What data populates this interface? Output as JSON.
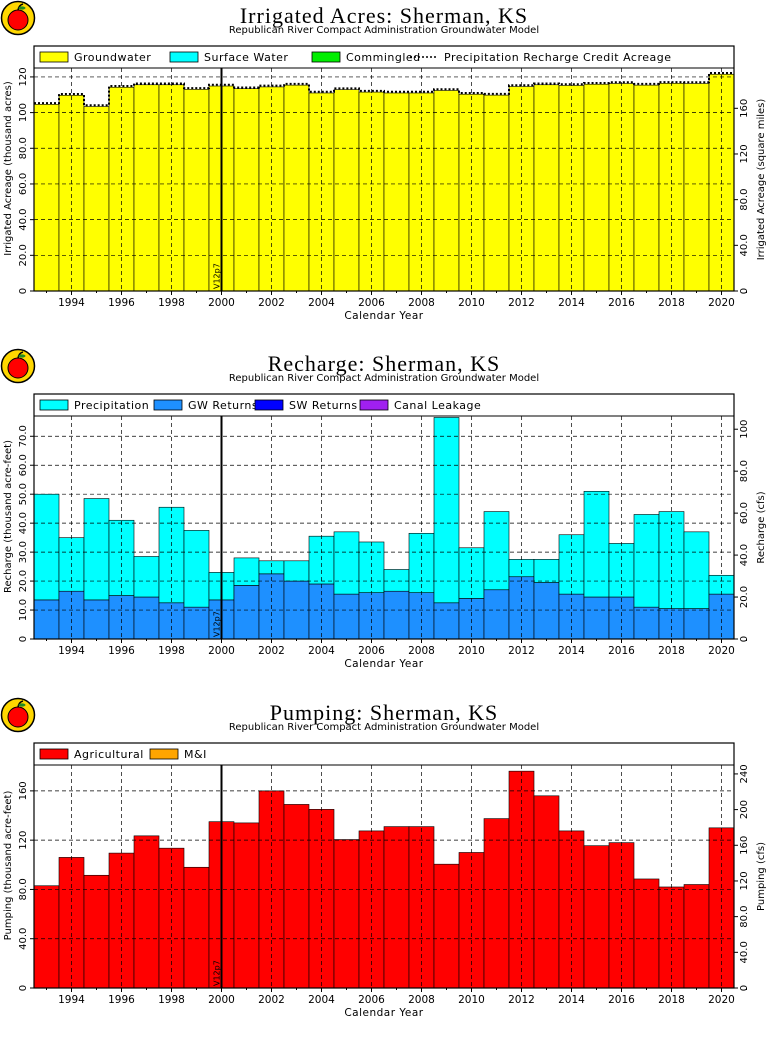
{
  "colors": {
    "groundwater": "#ffff00",
    "surface_water": "#00ffff",
    "commingled": "#00ee00",
    "precipitation": "#00ffff",
    "gw_returns": "#1e90ff",
    "sw_returns": "#0000ff",
    "canal_leakage": "#a020f0",
    "agricultural": "#ff0000",
    "mi": "#ffa500",
    "logo_apple": "#ff0000",
    "logo_ring": "#ffd700"
  },
  "chart_data": [
    {
      "type": "bar",
      "title": "Irrigated Acres:  Sherman,  KS",
      "subtitle": "Republican River Compact Administration Groundwater Model",
      "xlabel": "Calendar Year",
      "ylabel": "Irrigated Acreage (thousand acres)",
      "ylabel_right": "Irrigated Acreage (square miles)",
      "xlim": [
        1993,
        2021
      ],
      "ylim": [
        0,
        125
      ],
      "ylim_right": [
        0,
        195.3
      ],
      "yticks": [
        "0",
        "20.0",
        "40.0",
        "60.0",
        "80.0",
        "100",
        "120"
      ],
      "yticks_right": [
        "0",
        "40.0",
        "80.0",
        "120",
        "160"
      ],
      "xticks": [
        "1994",
        "1996",
        "1998",
        "2000",
        "2002",
        "2004",
        "2006",
        "2008",
        "2010",
        "2012",
        "2014",
        "2016",
        "2018",
        "2020"
      ],
      "marker_year": 2000.5,
      "marker_label": "V12p7",
      "grid": true,
      "legend": [
        "Groundwater",
        "Surface Water",
        "Commingled",
        "Precipitation Recharge Credit Acreage"
      ],
      "years": [
        1993,
        1994,
        1995,
        1996,
        1997,
        1998,
        1999,
        2000,
        2001,
        2002,
        2003,
        2004,
        2005,
        2006,
        2007,
        2008,
        2009,
        2010,
        2011,
        2012,
        2013,
        2014,
        2015,
        2016,
        2017,
        2018,
        2019,
        2020
      ],
      "series": [
        {
          "name": "Groundwater",
          "values": [
            104.6,
            109.7,
            103.4,
            114.2,
            115.6,
            115.6,
            113.0,
            114.9,
            113.4,
            114.4,
            115.4,
            111.0,
            112.9,
            111.5,
            111.0,
            111.0,
            112.4,
            110.3,
            109.8,
            114.6,
            115.6,
            115.2,
            115.9,
            116.3,
            115.4,
            116.4,
            116.3,
            121.5
          ]
        },
        {
          "name": "Surface Water",
          "values": [
            0,
            0,
            0,
            0,
            0,
            0,
            0,
            0,
            0,
            0,
            0,
            0,
            0,
            0,
            0,
            0,
            0,
            0,
            0,
            0,
            0,
            0,
            0,
            0,
            0,
            0,
            0,
            0
          ]
        },
        {
          "name": "Commingled",
          "values": [
            0,
            0,
            0,
            0,
            0,
            0,
            0,
            0,
            0,
            0,
            0,
            0,
            0,
            0,
            0,
            0,
            0,
            0,
            0,
            0,
            0,
            0,
            0,
            0,
            0,
            0,
            0,
            0
          ]
        },
        {
          "name": "Precipitation Recharge Credit Acreage",
          "values": [
            105.3,
            110.4,
            104.1,
            114.9,
            116.3,
            116.3,
            113.7,
            115.6,
            114.1,
            115.1,
            116.1,
            111.7,
            113.6,
            112.2,
            111.7,
            111.7,
            113.1,
            111.0,
            110.5,
            115.3,
            116.3,
            115.9,
            116.6,
            117.0,
            116.1,
            117.1,
            117.0,
            122.2
          ]
        }
      ]
    },
    {
      "type": "bar",
      "title": "Recharge:  Sherman,  KS",
      "subtitle": "Republican River Compact Administration Groundwater Model",
      "xlabel": "Calendar Year",
      "ylabel": "Recharge (thousand acre-feet)",
      "ylabel_right": "Recharge (cfs)",
      "xlim": [
        1993,
        2021
      ],
      "ylim": [
        0,
        77
      ],
      "ylim_right": [
        0,
        106.3
      ],
      "yticks": [
        "0",
        "10.0",
        "20.0",
        "30.0",
        "40.0",
        "50.0",
        "60.0",
        "70.0"
      ],
      "yticks_right": [
        "0",
        "20.0",
        "40.0",
        "60.0",
        "80.0",
        "100"
      ],
      "xticks": [
        "1994",
        "1996",
        "1998",
        "2000",
        "2002",
        "2004",
        "2006",
        "2008",
        "2010",
        "2012",
        "2014",
        "2016",
        "2018",
        "2020"
      ],
      "marker_year": 2000.5,
      "marker_label": "V12p7",
      "grid": true,
      "legend": [
        "Precipitation",
        "GW Returns",
        "SW Returns",
        "Canal Leakage"
      ],
      "years": [
        1993,
        1994,
        1995,
        1996,
        1997,
        1998,
        1999,
        2000,
        2001,
        2002,
        2003,
        2004,
        2005,
        2006,
        2007,
        2008,
        2009,
        2010,
        2011,
        2012,
        2013,
        2014,
        2015,
        2016,
        2017,
        2018,
        2019,
        2020
      ],
      "series": [
        {
          "name": "GW Returns",
          "values": [
            13.5,
            16.5,
            13.5,
            15.0,
            14.5,
            12.5,
            11.0,
            13.5,
            18.5,
            22.5,
            20.0,
            19.0,
            15.5,
            16.0,
            16.5,
            16.0,
            12.5,
            14.0,
            17.0,
            21.5,
            19.5,
            15.5,
            14.5,
            14.5,
            11.0,
            10.5,
            10.5,
            15.5
          ]
        },
        {
          "name": "Precipitation",
          "values": [
            36.5,
            18.5,
            35.0,
            26.0,
            14.0,
            33.0,
            26.5,
            9.5,
            9.5,
            4.5,
            7.0,
            16.5,
            21.5,
            17.5,
            7.5,
            20.5,
            64.0,
            17.5,
            27.0,
            6.0,
            8.0,
            20.5,
            36.5,
            18.5,
            32.0,
            33.5,
            26.5,
            6.5
          ]
        },
        {
          "name": "SW Returns",
          "values": [
            0,
            0,
            0,
            0,
            0,
            0,
            0,
            0,
            0,
            0,
            0,
            0,
            0,
            0,
            0,
            0,
            0,
            0,
            0,
            0,
            0,
            0,
            0,
            0,
            0,
            0,
            0,
            0
          ]
        },
        {
          "name": "Canal Leakage",
          "values": [
            0,
            0,
            0,
            0,
            0,
            0,
            0,
            0,
            0,
            0,
            0,
            0,
            0,
            0,
            0,
            0,
            0,
            0,
            0,
            0,
            0,
            0,
            0,
            0,
            0,
            0,
            0,
            0
          ]
        }
      ]
    },
    {
      "type": "bar",
      "title": "Pumping:  Sherman,  KS",
      "subtitle": "Republican River Compact Administration Groundwater Model",
      "xlabel": "Calendar Year",
      "ylabel": "Pumping (thousand acre-feet)",
      "ylabel_right": "Pumping (cfs)",
      "xlim": [
        1993,
        2021
      ],
      "ylim": [
        0,
        181
      ],
      "ylim_right": [
        0,
        250
      ],
      "yticks": [
        "0",
        "40.0",
        "80.0",
        "120",
        "160"
      ],
      "yticks_right": [
        "0",
        "40.0",
        "80.0",
        "120",
        "160",
        "200",
        "240"
      ],
      "xticks": [
        "1994",
        "1996",
        "1998",
        "2000",
        "2002",
        "2004",
        "2006",
        "2008",
        "2010",
        "2012",
        "2014",
        "2016",
        "2018",
        "2020"
      ],
      "marker_year": 2000.5,
      "marker_label": "V12p7",
      "grid": true,
      "legend": [
        "Agricultural",
        "M&I"
      ],
      "years": [
        1993,
        1994,
        1995,
        1996,
        1997,
        1998,
        1999,
        2000,
        2001,
        2002,
        2003,
        2004,
        2005,
        2006,
        2007,
        2008,
        2009,
        2010,
        2011,
        2012,
        2013,
        2014,
        2015,
        2016,
        2017,
        2018,
        2019,
        2020
      ],
      "series": [
        {
          "name": "Agricultural",
          "values": [
            83.0,
            106.0,
            91.5,
            109.5,
            123.5,
            113.5,
            98.0,
            135.0,
            134.0,
            160.0,
            149.0,
            145.0,
            120.5,
            127.5,
            131.0,
            131.0,
            100.5,
            110.0,
            137.5,
            176.0,
            156.0,
            127.5,
            115.5,
            118.0,
            88.5,
            82.0,
            84.0,
            130.0
          ]
        },
        {
          "name": "M&I",
          "values": [
            0,
            0,
            0,
            0,
            0,
            0,
            0,
            0,
            0,
            0,
            0,
            0,
            0,
            0,
            0,
            0,
            0,
            0,
            0,
            0,
            0,
            0,
            0,
            0,
            0,
            0,
            0,
            0
          ]
        }
      ]
    }
  ]
}
